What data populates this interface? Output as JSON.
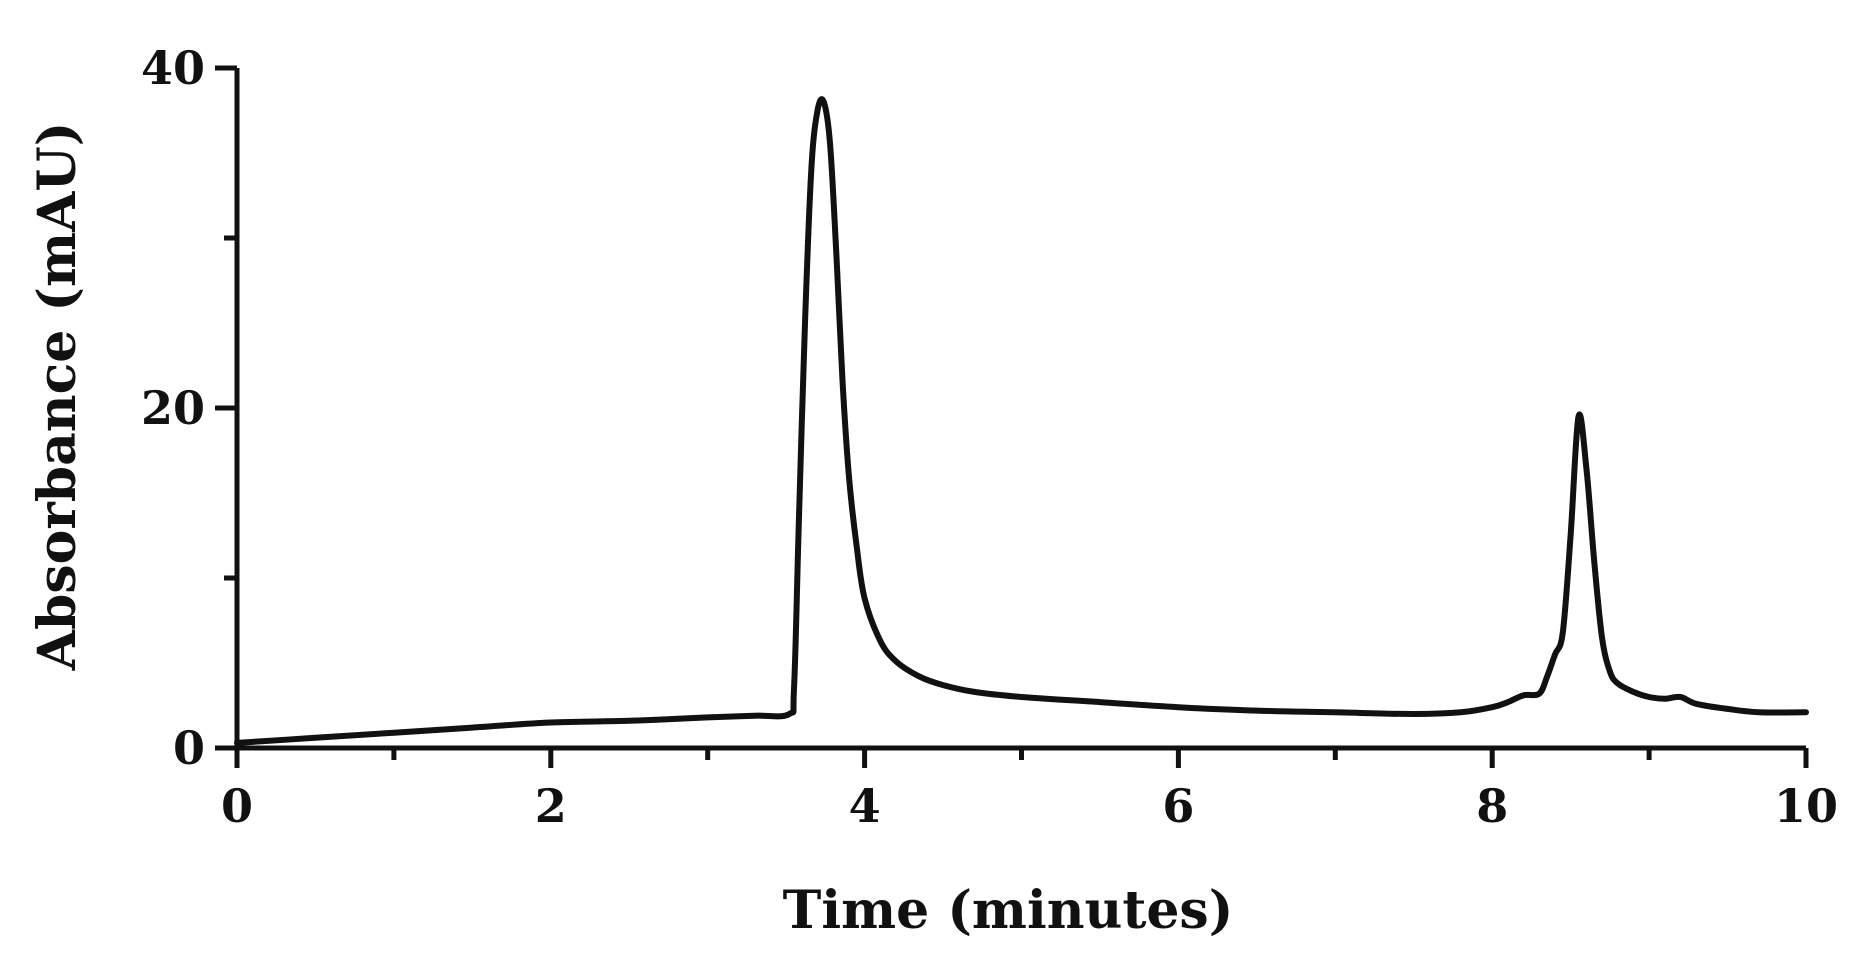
{
  "chart_data": {
    "type": "line",
    "title": "",
    "xlabel": "Time (minutes)",
    "ylabel": "Absorbance (mAU)",
    "xlim": [
      0,
      10
    ],
    "ylim": [
      0,
      40
    ],
    "x_ticks_major": [
      0,
      2,
      4,
      6,
      8,
      10
    ],
    "x_ticks_minor": [
      1,
      3,
      5,
      7,
      9
    ],
    "x_tick_labels": [
      "0",
      "2",
      "4",
      "6",
      "8",
      "10"
    ],
    "y_ticks_major": [
      0,
      20,
      40
    ],
    "y_ticks_minor": [
      10,
      30
    ],
    "y_tick_labels": [
      "0",
      "20",
      "40"
    ],
    "grid": false,
    "legend": "none",
    "line_color": "#111111",
    "series": [
      {
        "x": [
          0,
          0.5,
          1,
          1.5,
          2,
          2.5,
          3,
          3.3,
          3.52,
          3.55,
          3.58,
          3.62,
          3.66,
          3.7,
          3.74,
          3.78,
          3.82,
          3.86,
          3.9,
          3.95,
          4.0,
          4.1,
          4.2,
          4.35,
          4.5,
          4.7,
          5.0,
          5.5,
          6.0,
          6.5,
          7.0,
          7.5,
          7.8,
          8.0,
          8.1,
          8.2,
          8.3,
          8.35,
          8.4,
          8.45,
          8.5,
          8.55,
          8.6,
          8.65,
          8.7,
          8.75,
          8.8,
          8.9,
          9.0,
          9.1,
          9.2,
          9.3,
          9.5,
          9.7,
          10.0
        ],
        "y": [
          0.3,
          0.6,
          0.9,
          1.2,
          1.5,
          1.6,
          1.8,
          1.9,
          2.0,
          3.5,
          13.0,
          25.0,
          34.0,
          37.5,
          38.0,
          35.5,
          29.0,
          21.5,
          16.0,
          11.8,
          8.8,
          6.3,
          5.1,
          4.2,
          3.7,
          3.3,
          3.0,
          2.7,
          2.4,
          2.2,
          2.1,
          2.0,
          2.1,
          2.4,
          2.7,
          3.1,
          3.2,
          4.2,
          5.5,
          6.8,
          12.5,
          19.5,
          16.5,
          11.0,
          6.5,
          4.5,
          3.8,
          3.3,
          3.0,
          2.9,
          3.0,
          2.6,
          2.3,
          2.1,
          2.1
        ]
      }
    ]
  }
}
